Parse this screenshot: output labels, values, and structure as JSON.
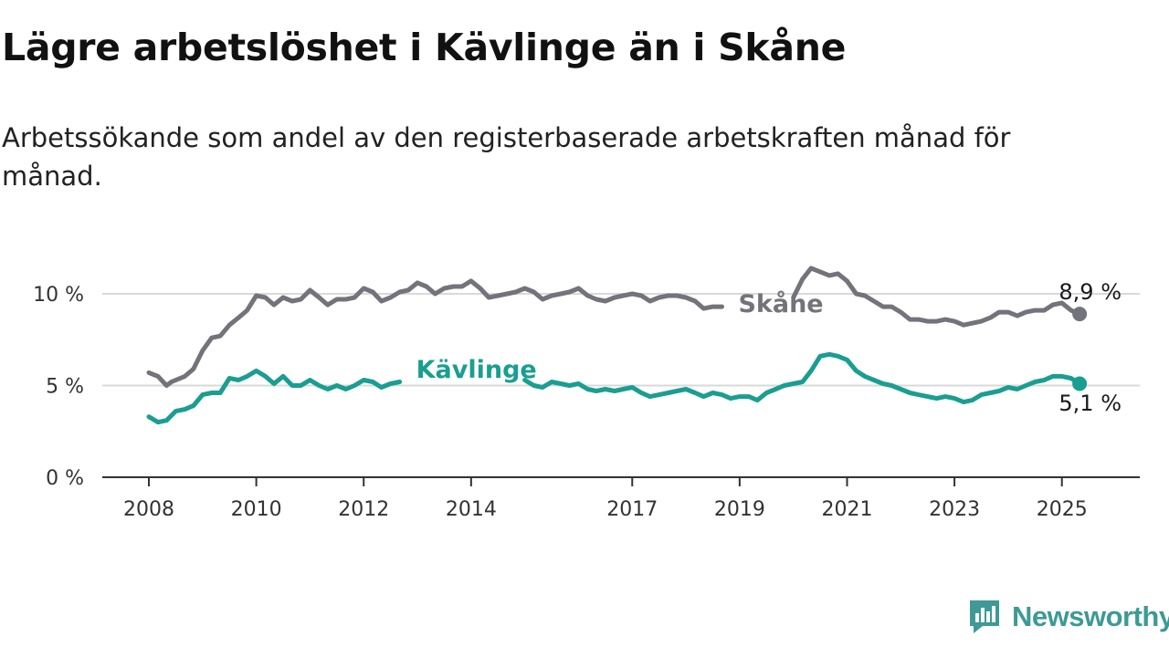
{
  "title": "Lägre arbetslöshet i Kävlinge än i Skåne",
  "subtitle": "Arbetssökande som andel av den registerbaserade arbetskraften månad för månad.",
  "brand": {
    "name": "Newsworthy",
    "icon": "newsworthy-logo-icon"
  },
  "colors": {
    "skane": "#73737b",
    "kavlinge": "#1a9e91",
    "grid": "#d9d9d9",
    "axis": "#333333",
    "brand": "#3d9a94"
  },
  "chart_data": {
    "type": "line",
    "title": "Lägre arbetslöshet i Kävlinge än i Skåne",
    "subtitle": "Arbetssökande som andel av den registerbaserade arbetskraften månad för månad.",
    "y_unit": "%",
    "ylim": [
      0,
      12
    ],
    "yticks": [
      0,
      5,
      10
    ],
    "ytick_labels": [
      "0 %",
      "5 %",
      "10 %"
    ],
    "xlim": [
      2008.0,
      2025.6
    ],
    "xticks": [
      2008,
      2010,
      2012,
      2014,
      2017,
      2019,
      2021,
      2023,
      2025
    ],
    "xtick_labels": [
      "2008",
      "2010",
      "2012",
      "2014",
      "2017",
      "2019",
      "2021",
      "2023",
      "2025"
    ],
    "grid": true,
    "series": [
      {
        "name": "Skåne",
        "end_label": "8,9 %",
        "points": [
          [
            2008.0,
            5.7
          ],
          [
            2008.17,
            5.5
          ],
          [
            2008.33,
            5.0
          ],
          [
            2008.42,
            5.2
          ],
          [
            2008.67,
            5.5
          ],
          [
            2008.83,
            5.9
          ],
          [
            2009.0,
            6.9
          ],
          [
            2009.17,
            7.6
          ],
          [
            2009.33,
            7.7
          ],
          [
            2009.5,
            8.3
          ],
          [
            2009.67,
            8.7
          ],
          [
            2009.83,
            9.1
          ],
          [
            2010.0,
            9.9
          ],
          [
            2010.17,
            9.8
          ],
          [
            2010.33,
            9.4
          ],
          [
            2010.5,
            9.8
          ],
          [
            2010.67,
            9.6
          ],
          [
            2010.83,
            9.7
          ],
          [
            2011.0,
            10.2
          ],
          [
            2011.17,
            9.8
          ],
          [
            2011.33,
            9.4
          ],
          [
            2011.5,
            9.7
          ],
          [
            2011.67,
            9.7
          ],
          [
            2011.83,
            9.8
          ],
          [
            2012.0,
            10.3
          ],
          [
            2012.17,
            10.1
          ],
          [
            2012.33,
            9.6
          ],
          [
            2012.5,
            9.8
          ],
          [
            2012.67,
            10.1
          ],
          [
            2012.83,
            10.2
          ],
          [
            2013.0,
            10.6
          ],
          [
            2013.17,
            10.4
          ],
          [
            2013.33,
            10.0
          ],
          [
            2013.5,
            10.3
          ],
          [
            2013.67,
            10.4
          ],
          [
            2013.83,
            10.4
          ],
          [
            2014.0,
            10.7
          ],
          [
            2014.17,
            10.3
          ],
          [
            2014.33,
            9.8
          ],
          [
            2014.5,
            9.9
          ],
          [
            2014.67,
            10.0
          ],
          [
            2014.83,
            10.1
          ],
          [
            2015.0,
            10.3
          ],
          [
            2015.17,
            10.1
          ],
          [
            2015.33,
            9.7
          ],
          [
            2015.5,
            9.9
          ],
          [
            2015.67,
            10.0
          ],
          [
            2015.83,
            10.1
          ],
          [
            2016.0,
            10.3
          ],
          [
            2016.17,
            9.9
          ],
          [
            2016.33,
            9.7
          ],
          [
            2016.5,
            9.6
          ],
          [
            2016.67,
            9.8
          ],
          [
            2016.83,
            9.9
          ],
          [
            2017.0,
            10.0
          ],
          [
            2017.17,
            9.9
          ],
          [
            2017.33,
            9.6
          ],
          [
            2017.5,
            9.8
          ],
          [
            2017.67,
            9.9
          ],
          [
            2017.83,
            9.9
          ],
          [
            2018.0,
            9.8
          ],
          [
            2018.17,
            9.6
          ],
          [
            2018.33,
            9.2
          ],
          [
            2018.5,
            9.3
          ],
          [
            2018.67,
            9.3
          ],
          [
            2020.0,
            9.8
          ],
          [
            2020.17,
            10.8
          ],
          [
            2020.33,
            11.4
          ],
          [
            2020.5,
            11.2
          ],
          [
            2020.67,
            11.0
          ],
          [
            2020.83,
            11.1
          ],
          [
            2021.0,
            10.7
          ],
          [
            2021.17,
            10.0
          ],
          [
            2021.33,
            9.9
          ],
          [
            2021.5,
            9.6
          ],
          [
            2021.67,
            9.3
          ],
          [
            2021.83,
            9.3
          ],
          [
            2022.0,
            9.0
          ],
          [
            2022.17,
            8.6
          ],
          [
            2022.33,
            8.6
          ],
          [
            2022.5,
            8.5
          ],
          [
            2022.67,
            8.5
          ],
          [
            2022.83,
            8.6
          ],
          [
            2023.0,
            8.5
          ],
          [
            2023.17,
            8.3
          ],
          [
            2023.33,
            8.4
          ],
          [
            2023.5,
            8.5
          ],
          [
            2023.67,
            8.7
          ],
          [
            2023.83,
            9.0
          ],
          [
            2024.0,
            9.0
          ],
          [
            2024.17,
            8.8
          ],
          [
            2024.33,
            9.0
          ],
          [
            2024.5,
            9.1
          ],
          [
            2024.67,
            9.1
          ],
          [
            2024.83,
            9.4
          ],
          [
            2025.0,
            9.5
          ],
          [
            2025.17,
            9.1
          ],
          [
            2025.33,
            8.9
          ]
        ]
      },
      {
        "name": "Kävlinge",
        "end_label": "5,1 %",
        "points": [
          [
            2008.0,
            3.3
          ],
          [
            2008.17,
            3.0
          ],
          [
            2008.33,
            3.1
          ],
          [
            2008.5,
            3.6
          ],
          [
            2008.67,
            3.7
          ],
          [
            2008.83,
            3.9
          ],
          [
            2009.0,
            4.5
          ],
          [
            2009.17,
            4.6
          ],
          [
            2009.33,
            4.6
          ],
          [
            2009.5,
            5.4
          ],
          [
            2009.67,
            5.3
          ],
          [
            2009.83,
            5.5
          ],
          [
            2010.0,
            5.8
          ],
          [
            2010.17,
            5.5
          ],
          [
            2010.33,
            5.1
          ],
          [
            2010.5,
            5.5
          ],
          [
            2010.67,
            5.0
          ],
          [
            2010.83,
            5.0
          ],
          [
            2011.0,
            5.3
          ],
          [
            2011.17,
            5.0
          ],
          [
            2011.33,
            4.8
          ],
          [
            2011.5,
            5.0
          ],
          [
            2011.67,
            4.8
          ],
          [
            2011.83,
            5.0
          ],
          [
            2012.0,
            5.3
          ],
          [
            2012.17,
            5.2
          ],
          [
            2012.33,
            4.9
          ],
          [
            2012.5,
            5.1
          ],
          [
            2012.67,
            5.2
          ],
          [
            2015.0,
            5.3
          ],
          [
            2015.17,
            5.0
          ],
          [
            2015.33,
            4.9
          ],
          [
            2015.5,
            5.2
          ],
          [
            2015.67,
            5.1
          ],
          [
            2015.83,
            5.0
          ],
          [
            2016.0,
            5.1
          ],
          [
            2016.17,
            4.8
          ],
          [
            2016.33,
            4.7
          ],
          [
            2016.5,
            4.8
          ],
          [
            2016.67,
            4.7
          ],
          [
            2016.83,
            4.8
          ],
          [
            2017.0,
            4.9
          ],
          [
            2017.17,
            4.6
          ],
          [
            2017.33,
            4.4
          ],
          [
            2017.5,
            4.5
          ],
          [
            2017.67,
            4.6
          ],
          [
            2017.83,
            4.7
          ],
          [
            2018.0,
            4.8
          ],
          [
            2018.17,
            4.6
          ],
          [
            2018.33,
            4.4
          ],
          [
            2018.5,
            4.6
          ],
          [
            2018.67,
            4.5
          ],
          [
            2018.83,
            4.3
          ],
          [
            2019.0,
            4.4
          ],
          [
            2019.17,
            4.4
          ],
          [
            2019.33,
            4.2
          ],
          [
            2019.5,
            4.6
          ],
          [
            2019.67,
            4.8
          ],
          [
            2019.83,
            5.0
          ],
          [
            2020.0,
            5.1
          ],
          [
            2020.17,
            5.2
          ],
          [
            2020.33,
            5.8
          ],
          [
            2020.5,
            6.6
          ],
          [
            2020.67,
            6.7
          ],
          [
            2020.83,
            6.6
          ],
          [
            2021.0,
            6.4
          ],
          [
            2021.17,
            5.8
          ],
          [
            2021.33,
            5.5
          ],
          [
            2021.5,
            5.3
          ],
          [
            2021.67,
            5.1
          ],
          [
            2021.83,
            5.0
          ],
          [
            2022.0,
            4.8
          ],
          [
            2022.17,
            4.6
          ],
          [
            2022.33,
            4.5
          ],
          [
            2022.5,
            4.4
          ],
          [
            2022.67,
            4.3
          ],
          [
            2022.83,
            4.4
          ],
          [
            2023.0,
            4.3
          ],
          [
            2023.17,
            4.1
          ],
          [
            2023.33,
            4.2
          ],
          [
            2023.5,
            4.5
          ],
          [
            2023.67,
            4.6
          ],
          [
            2023.83,
            4.7
          ],
          [
            2024.0,
            4.9
          ],
          [
            2024.17,
            4.8
          ],
          [
            2024.33,
            5.0
          ],
          [
            2024.5,
            5.2
          ],
          [
            2024.67,
            5.3
          ],
          [
            2024.83,
            5.5
          ],
          [
            2025.0,
            5.5
          ],
          [
            2025.17,
            5.4
          ],
          [
            2025.33,
            5.1
          ]
        ]
      }
    ]
  }
}
